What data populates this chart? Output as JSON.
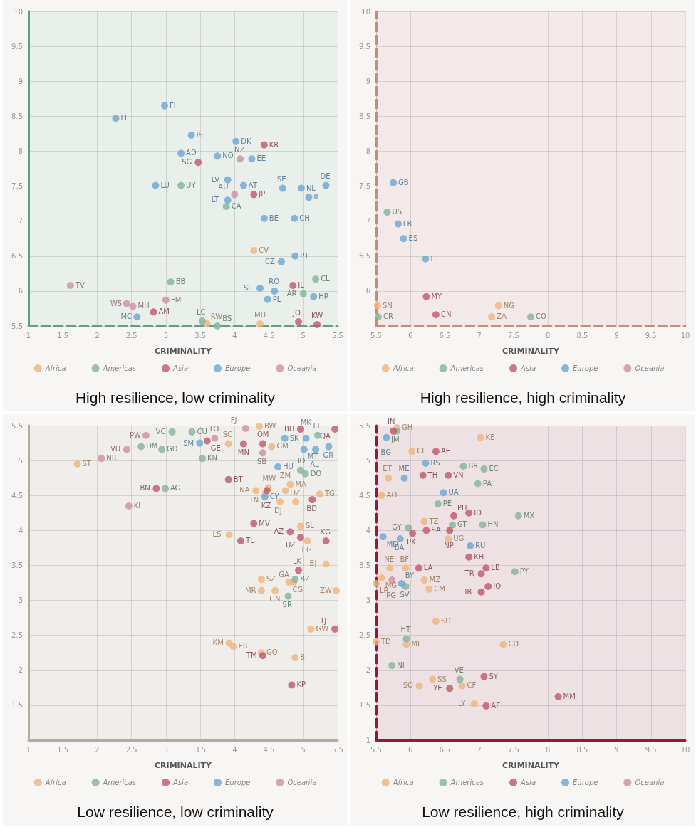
{
  "chart_data": [
    {
      "type": "scatter",
      "title": "High resilience, low criminality",
      "xlabel": "CRIMINALITY",
      "xlim": [
        1,
        5.5
      ],
      "ylim": [
        5.5,
        10
      ],
      "xticks": [
        1,
        1.5,
        2,
        2.5,
        3,
        3.5,
        4,
        4.5,
        5,
        5.5
      ],
      "yticks": [
        5.5,
        6,
        6.5,
        7,
        7.5,
        8,
        8.5,
        9,
        9.5,
        10
      ],
      "grid": true,
      "legend": "bottom",
      "marker": "circle",
      "series": [
        {
          "name": "Africa",
          "color": "#f0b47a",
          "x": [
            4.28,
            4.37,
            3.6
          ],
          "values": [
            6.58,
            5.53,
            5.53
          ],
          "value_labels": [
            "CV",
            "MU",
            "RW"
          ]
        },
        {
          "name": "Americas",
          "color": "#82b49a",
          "x": [
            3.22,
            3.88,
            3.07,
            5.18,
            5,
            3.53,
            3.75
          ],
          "values": [
            7.51,
            7.21,
            6.13,
            6.17,
            5.96,
            5.57,
            5.5
          ],
          "value_labels": [
            "UY",
            "CA",
            "BB",
            "CL",
            "AR",
            "LC",
            "BS"
          ]
        },
        {
          "name": "Asia",
          "color": "#c0566b",
          "x": [
            4.43,
            3.47,
            4.28,
            4.85,
            2.82,
            4.93,
            5.2
          ],
          "values": [
            8.09,
            7.84,
            7.38,
            6.08,
            5.7,
            5.56,
            5.52
          ],
          "value_labels": [
            "KR",
            "SG",
            "JP",
            "IL",
            "AM",
            "JO",
            "KW"
          ]
        },
        {
          "name": "Europe",
          "color": "#6aa6d4",
          "x": [
            2.27,
            2.98,
            3.37,
            4.02,
            3.22,
            3.75,
            4.25,
            2.85,
            3.9,
            4.13,
            4.7,
            4.97,
            5.33,
            5.08,
            3.9,
            4.43,
            4.87,
            4.88,
            4.68,
            4.37,
            4.58,
            4.48,
            5.15,
            2.58
          ],
          "values": [
            8.47,
            8.65,
            8.23,
            8.14,
            7.97,
            7.93,
            7.89,
            7.51,
            7.59,
            7.51,
            7.47,
            7.47,
            7.51,
            7.34,
            7.3,
            7.04,
            7.04,
            6.5,
            6.42,
            6.04,
            6,
            5.88,
            5.92,
            5.63
          ],
          "value_labels": [
            "LI",
            "FI",
            "IS",
            "DK",
            "AD",
            "NO",
            "EE",
            "LU",
            "LV",
            "AT",
            "SE",
            "NL",
            "DE",
            "IE",
            "LT",
            "BE",
            "CH",
            "PT",
            "CZ",
            "SI",
            "RO",
            "PL",
            "HR",
            "MC"
          ]
        },
        {
          "name": "Oceania",
          "color": "#d08ea0",
          "x": [
            4.08,
            4,
            1.61,
            2.43,
            2.52,
            3
          ],
          "values": [
            7.89,
            7.38,
            6.08,
            5.82,
            5.78,
            5.87
          ],
          "value_labels": [
            "NZ",
            "AU",
            "TV",
            "WS",
            "MH",
            "FM"
          ]
        }
      ]
    },
    {
      "type": "scatter",
      "title": "High resilience, high criminality",
      "xlabel": "CRIMINALITY",
      "xlim": [
        5.5,
        10
      ],
      "ylim": [
        5.5,
        10
      ],
      "xticks": [
        5.5,
        6,
        6.5,
        7,
        7.5,
        8,
        8.5,
        9,
        9.5,
        10
      ],
      "yticks": [
        6,
        6.5,
        7,
        7.5,
        8,
        8.5,
        9,
        9.5,
        10
      ],
      "grid": true,
      "legend": "bottom",
      "marker": "circle",
      "series": [
        {
          "name": "Africa",
          "color": "#f0b47a",
          "x": [
            5.52,
            7.28,
            7.18
          ],
          "values": [
            5.79,
            5.79,
            5.63
          ],
          "value_labels": [
            "SN",
            "NG",
            "ZA"
          ]
        },
        {
          "name": "Americas",
          "color": "#82b49a",
          "x": [
            5.66,
            5.53,
            7.75
          ],
          "values": [
            7.13,
            5.63,
            5.63
          ],
          "value_labels": [
            "US",
            "CR",
            "CO"
          ]
        },
        {
          "name": "Asia",
          "color": "#c0566b",
          "x": [
            6.23,
            6.37
          ],
          "values": [
            5.92,
            5.66
          ],
          "value_labels": [
            "MY",
            "CN"
          ]
        },
        {
          "name": "Europe",
          "color": "#6aa6d4",
          "x": [
            5.75,
            5.82,
            5.9,
            6.22
          ],
          "values": [
            7.55,
            6.96,
            6.75,
            6.46
          ],
          "value_labels": [
            "GB",
            "FR",
            "ES",
            "IT"
          ]
        },
        {
          "name": "Oceania",
          "color": "#d08ea0"
        }
      ]
    },
    {
      "type": "scatter",
      "title": "Low resilience, low criminality",
      "xlabel": "CRIMINALITY",
      "xlim": [
        1,
        5.5
      ],
      "ylim": [
        1,
        5.5
      ],
      "xticks": [
        1,
        1.5,
        2,
        2.5,
        3,
        3.5,
        4,
        4.5,
        5,
        5.5
      ],
      "yticks": [
        1.5,
        2,
        2.5,
        3,
        3.5,
        4,
        4.5,
        5,
        5.5
      ],
      "grid": true,
      "legend": "bottom",
      "marker": "circle",
      "series": [
        {
          "name": "Africa",
          "color": "#f0b47a",
          "x": [
            4.36,
            3.91,
            4.54,
            1.71,
            4.31,
            4.49,
            4.45,
            4.74,
            4.81,
            5.24,
            4.66,
            4.89,
            4.96,
            3.92,
            5.06,
            5.33,
            4.39,
            4.79,
            4.86,
            4.39,
            4.59,
            5.48,
            5.11,
            3.92,
            3.98,
            4.39,
            4.88
          ],
          "values": [
            5.49,
            5.24,
            5.2,
            4.95,
            4.57,
            4.61,
            4.53,
            4.57,
            4.66,
            4.52,
            4.41,
            4.41,
            4.06,
            3.94,
            3.85,
            3.52,
            3.3,
            3.26,
            3.26,
            3.14,
            3.14,
            3.14,
            2.59,
            2.39,
            2.34,
            2.25,
            2.18
          ],
          "value_labels": [
            "BW",
            "SC",
            "GM",
            "ST",
            "NA",
            "MW",
            "TN",
            "ZM",
            "MA",
            "TG",
            "DJ",
            "DZ",
            "SL",
            "LS",
            "EG",
            "BJ",
            "SZ",
            "CG",
            "GA",
            "MR",
            "GN",
            "ZW",
            "GW",
            "KM",
            "ER",
            "GQ",
            "BI"
          ]
        },
        {
          "name": "Americas",
          "color": "#82b49a",
          "x": [
            3.09,
            3.38,
            2.64,
            2.94,
            3.53,
            5.21,
            4.96,
            5.03,
            2.99,
            4.88,
            4.78
          ],
          "values": [
            5.41,
            5.41,
            5.2,
            5.16,
            5.03,
            5.36,
            4.86,
            4.81,
            4.6,
            3.3,
            3.06
          ],
          "value_labels": [
            "VC",
            "CU",
            "DM",
            "GD",
            "KN",
            "TT",
            "BO",
            "DO",
            "AG",
            "BZ",
            "SR"
          ]
        },
        {
          "name": "Asia",
          "color": "#c0566b",
          "x": [
            3.6,
            4.13,
            4.41,
            4.96,
            5.46,
            3.91,
            2.86,
            4.47,
            5.13,
            4.28,
            4.81,
            4.96,
            4.09,
            5.33,
            4.93,
            5.46,
            4.41,
            4.83
          ],
          "values": [
            5.28,
            5.24,
            5.24,
            5.45,
            5.45,
            4.73,
            4.6,
            4.57,
            4.44,
            4.1,
            3.98,
            3.9,
            3.85,
            3.85,
            3.43,
            2.59,
            2.21,
            1.79
          ],
          "value_labels": [
            "GE",
            "MN",
            "OM",
            "BH",
            "QA",
            "BT",
            "BN",
            "KZ",
            "BD",
            "MV",
            "AZ",
            "UZ",
            "TL",
            "KG",
            "LK",
            "TJ",
            "TM",
            "KP"
          ]
        },
        {
          "name": "Europe",
          "color": "#6aa6d4",
          "x": [
            3.49,
            4.73,
            5.04,
            5.37,
            5.01,
            5.18,
            4.63,
            4.44
          ],
          "values": [
            5.25,
            5.32,
            5.32,
            5.2,
            5.16,
            5.16,
            4.91,
            4.48
          ],
          "value_labels": [
            "SM",
            "SK",
            "MK",
            "GR",
            "MT",
            "AL",
            "HU",
            "CY"
          ]
        },
        {
          "name": "Oceania",
          "color": "#d08ea0",
          "x": [
            4.16,
            3.71,
            2.71,
            2.43,
            2.06,
            4.41,
            2.46
          ],
          "values": [
            5.46,
            5.32,
            5.36,
            5.16,
            5.03,
            5.11,
            4.35
          ],
          "value_labels": [
            "FJ",
            "TO",
            "PW",
            "VU",
            "NR",
            "SB",
            "KI"
          ]
        }
      ]
    },
    {
      "type": "scatter",
      "title": "Low resilience, high criminality",
      "xlabel": "CRIMINALITY",
      "xlim": [
        5.5,
        10
      ],
      "ylim": [
        1,
        5.5
      ],
      "xticks": [
        5.5,
        6,
        6.5,
        7,
        7.5,
        8,
        8.5,
        9,
        9.5,
        10
      ],
      "yticks": [
        1,
        1.5,
        2,
        2.5,
        3,
        3.5,
        4,
        4.5,
        5,
        5.5
      ],
      "grid": true,
      "legend": "bottom",
      "marker": "circle",
      "series": [
        {
          "name": "Africa",
          "color": "#f0b47a",
          "x": [
            5.8,
            5.68,
            5.58,
            5.93,
            5.7,
            5.58,
            5.5,
            7.02,
            6.02,
            6.2,
            6.55,
            6.2,
            6.27,
            6.37,
            5.5,
            5.94,
            7.35,
            6.32,
            6.13,
            6.75,
            6.93
          ],
          "values": [
            5.47,
            4.75,
            4.5,
            3.46,
            3.46,
            3.32,
            3.24,
            5.33,
            5.13,
            4.13,
            3.88,
            3.29,
            3.16,
            2.7,
            2.41,
            2.37,
            2.37,
            1.87,
            1.78,
            1.78,
            1.52
          ],
          "value_labels": [
            "GH",
            "ET",
            "AO",
            "BF",
            "NE",
            "MG",
            "LR",
            "KE",
            "CI",
            "TZ",
            "UG",
            "MZ",
            "CM",
            "SD",
            "TD",
            "ML",
            "CD",
            "SS",
            "SO",
            "CF",
            "LY"
          ]
        },
        {
          "name": "Americas",
          "color": "#82b49a",
          "x": [
            5.8,
            5.97,
            5.93,
            7.07,
            6.77,
            6.98,
            6.4,
            6.61,
            7.05,
            7.57,
            7.52,
            5.94,
            5.73,
            6.72
          ],
          "values": [
            5.42,
            4.04,
            3.2,
            4.88,
            4.92,
            4.67,
            4.38,
            4.08,
            4.08,
            4.21,
            3.41,
            2.45,
            2.07,
            1.87
          ],
          "value_labels": [
            "JM",
            "GY",
            "SV",
            "EC",
            "BR",
            "PA",
            "PE",
            "GT",
            "HN",
            "MX",
            "PY",
            "HT",
            "NI",
            "VE"
          ]
        },
        {
          "name": "Asia",
          "color": "#c0566b",
          "x": [
            5.75,
            6.37,
            6.18,
            6.55,
            6.63,
            6.85,
            6.23,
            6.57,
            6.03,
            6.85,
            6.12,
            7.1,
            7.03,
            7.13,
            7.03,
            7.07,
            6.57,
            7.1,
            8.15
          ],
          "values": [
            5.42,
            5.13,
            4.79,
            4.79,
            4.21,
            4.25,
            4,
            4,
            3.96,
            3.62,
            3.46,
            3.46,
            3.38,
            3.2,
            3.12,
            1.91,
            1.74,
            1.49,
            1.62
          ],
          "value_labels": [
            "IN",
            "AE",
            "TH",
            "VN",
            "PH",
            "ID",
            "SA",
            "NP",
            "PK",
            "KH",
            "LA",
            "LB",
            "TR",
            "IQ",
            "IR",
            "SY",
            "YE",
            "AF",
            "MM"
          ]
        },
        {
          "name": "Europe",
          "color": "#6aa6d4",
          "x": [
            5.65,
            5.91,
            5.6,
            5.85,
            5.87,
            6.22,
            6.48,
            6.87
          ],
          "values": [
            5.33,
            4.75,
            3.91,
            3.88,
            3.24,
            4.96,
            4.54,
            3.78
          ],
          "value_labels": [
            "BG",
            "ME",
            "MD",
            "BA",
            "BY",
            "RS",
            "UA",
            "RU"
          ]
        },
        {
          "name": "Oceania",
          "color": "#d08ea0",
          "x": [
            5.73
          ],
          "values": [
            3.29
          ],
          "value_labels": [
            "PG"
          ]
        }
      ]
    }
  ]
}
